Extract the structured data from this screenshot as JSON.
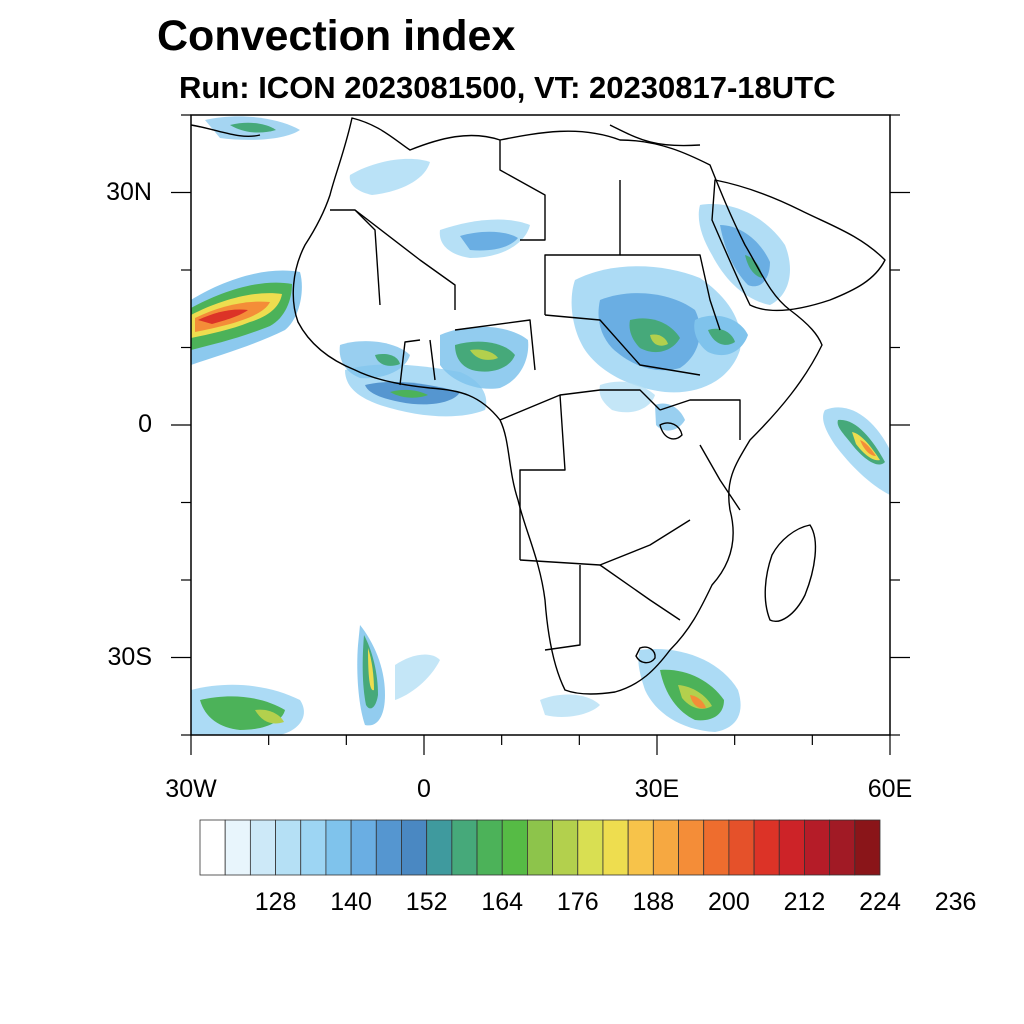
{
  "title": "Convection index",
  "subtitle": "Run: ICON 2023081500,  VT: 20230817-18UTC",
  "map": {
    "lon_range": [
      -30,
      60
    ],
    "lat_range": [
      -40,
      40
    ],
    "x_ticks": [
      {
        "lon": -30,
        "label": "30W"
      },
      {
        "lon": 0,
        "label": "0"
      },
      {
        "lon": 30,
        "label": "30E"
      },
      {
        "lon": 60,
        "label": "60E"
      }
    ],
    "y_ticks": [
      {
        "lat": 30,
        "label": "30N"
      },
      {
        "lat": 0,
        "label": "0"
      },
      {
        "lat": -30,
        "label": "30S"
      }
    ]
  },
  "colorbar": {
    "colors": [
      "#ffffff",
      "#e8f5fc",
      "#cde9f8",
      "#b5e0f5",
      "#9dd5f3",
      "#7fc3ec",
      "#6aaee3",
      "#5596d0",
      "#4a88c2",
      "#3f9a9e",
      "#46a97a",
      "#4cb259",
      "#56bb45",
      "#8dc44b",
      "#b3d04d",
      "#d9df52",
      "#eedd4f",
      "#f7c34a",
      "#f6a841",
      "#f48d38",
      "#ee6d2e",
      "#e5512a",
      "#dc3327",
      "#cd2328",
      "#b51c28",
      "#a11a25",
      "#8a1519"
    ],
    "labels": [
      "128",
      "140",
      "152",
      "164",
      "176",
      "188",
      "200",
      "212",
      "224",
      "236"
    ]
  }
}
